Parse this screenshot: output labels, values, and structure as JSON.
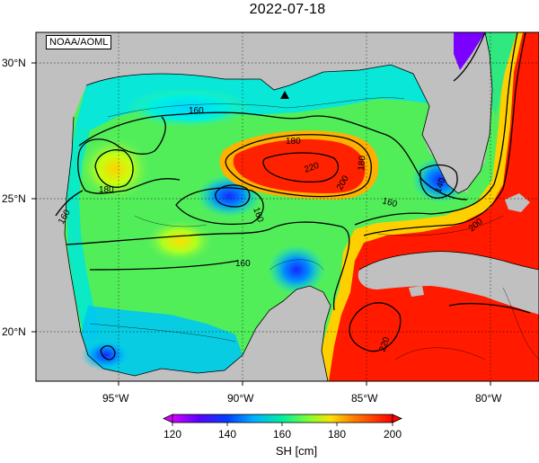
{
  "title": "2022-07-18",
  "credit": "NOAA/AOML",
  "latitude_labels": [
    "30°N",
    "25°N",
    "20°N"
  ],
  "longitude_labels": [
    "95°W",
    "90°W",
    "85°W",
    "80°W"
  ],
  "contour_labels": [
    "160",
    "180",
    "220",
    "200",
    "180",
    "160",
    "140",
    "180",
    "160",
    "200",
    "160",
    "220",
    "160"
  ],
  "colorbar": {
    "label": "SH [cm]",
    "ticks": [
      "120",
      "140",
      "160",
      "180",
      "200"
    ],
    "range": [
      120,
      200
    ],
    "colors": [
      "#d200ff",
      "#5a00ff",
      "#0040ff",
      "#00a8ff",
      "#00f0e8",
      "#40ff90",
      "#80ff30",
      "#d8ff00",
      "#ffd800",
      "#ff8000",
      "#ff2000",
      "#ff0000"
    ]
  },
  "colors": {
    "land": "#c0c0c0",
    "ocean_mid": "#50f060",
    "high": "#ff1a00",
    "low": "#1e3cff"
  },
  "markers": [
    {
      "symbol": "triangle",
      "name": "station"
    }
  ]
}
